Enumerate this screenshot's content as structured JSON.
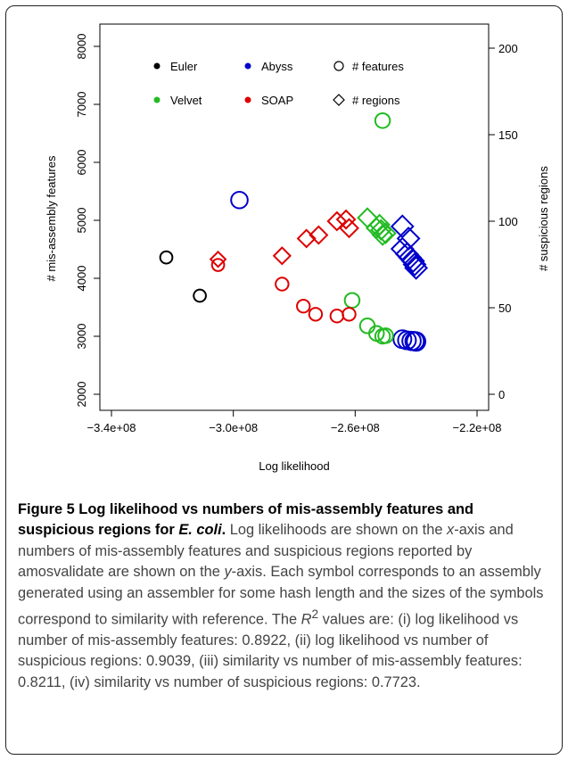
{
  "chart_data": {
    "type": "scatter",
    "xlabel": "Log likelihood",
    "ylabel_left": "# mis-assembly features",
    "ylabel_right": "# suspicious regions",
    "xlim": [
      -340000000.0,
      -220000000.0
    ],
    "ylim_left": [
      2000,
      8000
    ],
    "ylim_right": [
      0,
      200
    ],
    "x_ticks": [
      -340000000.0,
      -300000000.0,
      -260000000.0,
      -220000000.0
    ],
    "x_tick_labels": [
      "−3.4e+08",
      "−3.0e+08",
      "−2.6e+08",
      "−2.2e+08"
    ],
    "y_left_ticks": [
      2000,
      3000,
      4000,
      5000,
      6000,
      7000,
      8000
    ],
    "y_left_tick_labels": [
      "2000",
      "3000",
      "4000",
      "5000",
      "6000",
      "7000",
      "8000"
    ],
    "y_right_ticks": [
      0,
      50,
      100,
      150,
      200
    ],
    "y_right_tick_labels": [
      "0",
      "50",
      "100",
      "150",
      "200"
    ],
    "legend": [
      {
        "label": "Euler",
        "color": "#000000",
        "marker": "dot"
      },
      {
        "label": "Abyss",
        "color": "#0000cc",
        "marker": "dot"
      },
      {
        "label": "# features",
        "color": "#000000",
        "marker": "circle"
      },
      {
        "label": "Velvet",
        "color": "#22bb22",
        "marker": "dot"
      },
      {
        "label": "SOAP",
        "color": "#dd0000",
        "marker": "dot"
      },
      {
        "label": "# regions",
        "color": "#000000",
        "marker": "diamond"
      }
    ],
    "series": [
      {
        "name": "Euler",
        "color": "#000000",
        "features": [
          {
            "x": -322000000.0,
            "y": 4360,
            "s": 0.55
          },
          {
            "x": -311000000.0,
            "y": 3700,
            "s": 0.55
          }
        ],
        "regions": []
      },
      {
        "name": "Abyss",
        "color": "#0000cc",
        "features": [
          {
            "x": -298000000.0,
            "y": 5350,
            "s": 0.9
          },
          {
            "x": -244500000.0,
            "y": 2950,
            "s": 1.0
          },
          {
            "x": -243000000.0,
            "y": 2930,
            "s": 1.0
          },
          {
            "x": -241500000.0,
            "y": 2920,
            "s": 1.05
          },
          {
            "x": -240500000.0,
            "y": 2915,
            "s": 1.05
          },
          {
            "x": -240000000.0,
            "y": 2910,
            "s": 1.05
          }
        ],
        "regions": [
          {
            "x": -244500000.0,
            "y": 97,
            "s": 1.0
          },
          {
            "x": -242500000.0,
            "y": 90,
            "s": 1.0
          },
          {
            "x": -244500000.0,
            "y": 84,
            "s": 1.0
          },
          {
            "x": -243000000.0,
            "y": 81,
            "s": 1.0
          },
          {
            "x": -242000000.0,
            "y": 79,
            "s": 1.0
          },
          {
            "x": -241000000.0,
            "y": 77,
            "s": 1.0
          },
          {
            "x": -240500000.0,
            "y": 75,
            "s": 1.0
          },
          {
            "x": -240000000.0,
            "y": 73,
            "s": 1.0
          }
        ]
      },
      {
        "name": "Velvet",
        "color": "#22bb22",
        "features": [
          {
            "x": -251000000.0,
            "y": 6720,
            "s": 0.75
          },
          {
            "x": -261000000.0,
            "y": 3620,
            "s": 0.75
          },
          {
            "x": -256000000.0,
            "y": 3180,
            "s": 0.75
          },
          {
            "x": -253000000.0,
            "y": 3050,
            "s": 0.75
          },
          {
            "x": -251000000.0,
            "y": 3000,
            "s": 0.75
          },
          {
            "x": -250000000.0,
            "y": 3010,
            "s": 0.75
          }
        ],
        "regions": [
          {
            "x": -256000000.0,
            "y": 102,
            "s": 0.8
          },
          {
            "x": -253000000.0,
            "y": 96,
            "s": 0.85
          },
          {
            "x": -252000000.0,
            "y": 98,
            "s": 0.85
          },
          {
            "x": -251500000.0,
            "y": 95,
            "s": 0.85
          },
          {
            "x": -251000000.0,
            "y": 92,
            "s": 0.85
          },
          {
            "x": -250000000.0,
            "y": 93,
            "s": 0.85
          }
        ]
      },
      {
        "name": "SOAP",
        "color": "#dd0000",
        "features": [
          {
            "x": -305000000.0,
            "y": 4230,
            "s": 0.55
          },
          {
            "x": -284000000.0,
            "y": 3900,
            "s": 0.6
          },
          {
            "x": -277000000.0,
            "y": 3520,
            "s": 0.6
          },
          {
            "x": -273000000.0,
            "y": 3380,
            "s": 0.6
          },
          {
            "x": -266000000.0,
            "y": 3350,
            "s": 0.6
          },
          {
            "x": -262000000.0,
            "y": 3380,
            "s": 0.6
          }
        ],
        "regions": [
          {
            "x": -305000000.0,
            "y": 78,
            "s": 0.55
          },
          {
            "x": -284000000.0,
            "y": 80,
            "s": 0.65
          },
          {
            "x": -276000000.0,
            "y": 90,
            "s": 0.7
          },
          {
            "x": -272000000.0,
            "y": 92,
            "s": 0.7
          },
          {
            "x": -266000000.0,
            "y": 100,
            "s": 0.75
          },
          {
            "x": -263000000.0,
            "y": 101,
            "s": 0.75
          },
          {
            "x": -262000000.0,
            "y": 96,
            "s": 0.75
          }
        ]
      }
    ]
  },
  "caption": {
    "bold_text": "Figure 5 Log likelihood vs numbers of mis-assembly features and suspicious regions for ",
    "bold_species": "E. coli",
    "period": ". ",
    "seg1": "Log likelihoods are shown on the ",
    "x_axis_word": "x",
    "seg2": "-axis and numbers of mis-assembly features and suspicious regions reported by amosvalidate are shown on the ",
    "y_axis_word": "y",
    "seg3": "-axis. Each symbol corresponds to an assembly generated using an assembler for some hash length and the sizes of the symbols correspond to similarity with reference. The ",
    "r_symbol": "R",
    "r_exp": "2",
    "seg4": " values are: (i) log likelihood vs number of mis-assembly features: 0.8922, (ii) log likelihood vs number of suspicious regions: 0.9039, (iii) similarity vs number of mis-assembly features: 0.8211, (iv) similarity vs number of suspicious regions: 0.7723."
  }
}
